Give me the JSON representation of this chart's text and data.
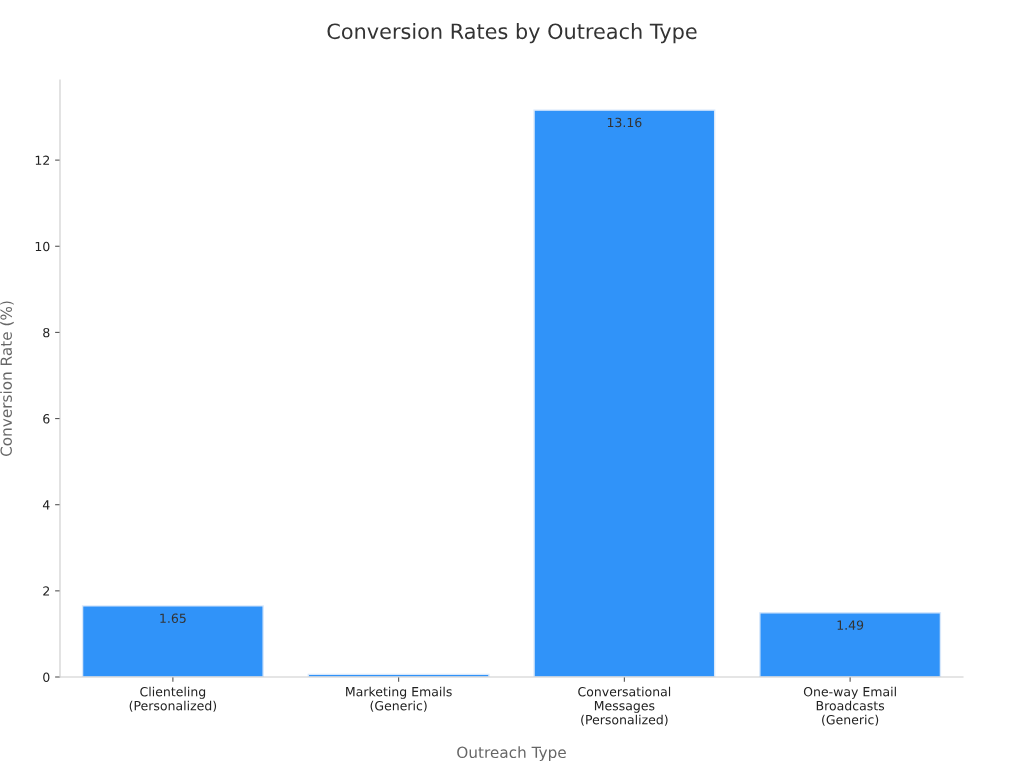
{
  "chart_data": {
    "type": "bar",
    "title": "Conversion Rates by Outreach Type",
    "xlabel": "Outreach Type",
    "ylabel": "Conversion Rate (%)",
    "categories": [
      "Clienteling\n(Personalized)",
      "Marketing Emails\n(Generic)",
      "Conversational\nMessages\n(Personalized)",
      "One-way Email\nBroadcasts\n(Generic)"
    ],
    "values": [
      1.65,
      0.06,
      13.16,
      1.49
    ],
    "value_labels": [
      "1.65",
      null,
      "13.16",
      "1.49"
    ],
    "color": "#3093f9",
    "ylim": [
      0,
      13.86
    ],
    "yticks": [
      0,
      2,
      4,
      6,
      8,
      10,
      12
    ],
    "grid": false,
    "legend": false
  }
}
